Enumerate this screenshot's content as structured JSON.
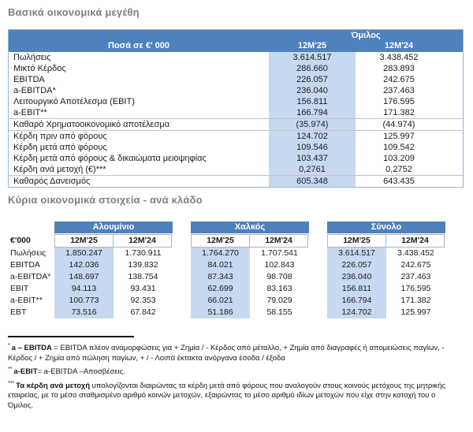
{
  "titles": {
    "section1": "Βασικά οικονομικά μεγέθη",
    "section2": "Κύρια οικονομικά στοιχεία - ανά κλάδο"
  },
  "colors": {
    "header_blue": "#4f81bd",
    "highlight_blue": "#c6d9f1",
    "title_gray": "#808080"
  },
  "table1": {
    "header": {
      "amounts_label": "Ποσά  σε €' 000",
      "group_label": "Όμιλος",
      "col_2025": "12M'25",
      "col_2024": "12M'24"
    },
    "separators_after": [
      5,
      6,
      10
    ],
    "rows": [
      {
        "label": "Πωλήσεις",
        "v25": "3.614.517",
        "v24": "3.438.452"
      },
      {
        "label": "Μικτό Κέρδος",
        "v25": "286.660",
        "v24": "283.893"
      },
      {
        "label": "EBITDA",
        "v25": "226.057",
        "v24": "242.675"
      },
      {
        "label": "a-EBITDA*",
        "v25": "236.040",
        "v24": "237.463"
      },
      {
        "label": "Λειτουργικό Αποτέλεσμα (EBIT)",
        "v25": "156.811",
        "v24": "176.595"
      },
      {
        "label": "a-EBIT**",
        "v25": "166.794",
        "v24": "171.382"
      },
      {
        "label": "Καθαρό Χρηματοοικονομικό αποτέλεσμα",
        "v25": "(35.974)",
        "v24": "(44.974)"
      },
      {
        "label": "Κέρδη πριν από φόρους",
        "v25": "124.702",
        "v24": "125.997"
      },
      {
        "label": "Κέρδη μετά από φόρους",
        "v25": "109.546",
        "v24": "109.542"
      },
      {
        "label": "Κέρδη μετά από φόρους & δικαιώματα μειοψηφίας",
        "v25": "103.437",
        "v24": "103.209"
      },
      {
        "label": "Κέρδη ανά μετοχή (€)***",
        "v25": "0,2761",
        "v24": "0,2752"
      },
      {
        "label": "Καθαρός Δανεισμός",
        "v25": "605.348",
        "v24": "643.435"
      }
    ]
  },
  "table2": {
    "unit_label": "€'000",
    "groups": [
      {
        "name": "Αλουμίνιο",
        "col_2025": "12M'25",
        "col_2024": "12M'24"
      },
      {
        "name": "Χαλκός",
        "col_2025": "12M'25",
        "col_2024": "12M'24"
      },
      {
        "name": "Σύνολο",
        "col_2025": "12M'25",
        "col_2024": "12M'24"
      }
    ],
    "rows": [
      {
        "label": "Πωλήσεις",
        "values": [
          "1.850.247",
          "1.730.911",
          "1.764.270",
          "1.707.541",
          "3.614.517",
          "3.438.452"
        ]
      },
      {
        "label": "EBITDA",
        "values": [
          "142.036",
          "139.832",
          "84.021",
          "102.843",
          "226.057",
          "242.675"
        ]
      },
      {
        "label": "a-EBITDA*",
        "values": [
          "148.697",
          "138.754",
          "87.343",
          "98.708",
          "236.040",
          "237.463"
        ]
      },
      {
        "label": "EBIT",
        "values": [
          "94.113",
          "93.431",
          "62.699",
          "83.163",
          "156.811",
          "176.595"
        ]
      },
      {
        "label": "a-EBIT**",
        "values": [
          "100.773",
          "92.353",
          "66.021",
          "79.029",
          "166.794",
          "171.382"
        ]
      },
      {
        "label": "EBT",
        "values": [
          "73.516",
          "67.842",
          "51.186",
          "58.155",
          "124.702",
          "125.997"
        ]
      }
    ]
  },
  "footnotes": [
    {
      "marker": "*",
      "lead": "a – EBITDA ",
      "text": "= EBITDA πλέον αναμορφώσεις για + Ζημία / - Κέρδος από μέταλλο, + Ζημία από διαγραφές ή απομειώσεις παγίων, - Κέρδος / + Ζημία από πώληση παγίων, + / - Λοιπά έκτακτα ανόργανα έσοδα / έξοδα"
    },
    {
      "marker": "**",
      "lead": "a-EBIT",
      "text": "= a-EBITDA –Αποσβέσεις."
    },
    {
      "marker": "***",
      "lead": "Τα κέρδη ανά μετοχή ",
      "text": "υπολογίζονται διαιρώντας τα κέρδη μετά από φόρους που αναλογούν στους κοινούς μετόχους της μητρικής εταιρείας, με το μέσο σταθμισμένο αριθμό κοινών μετοχών, εξαιρώντας το μέσο αριθμό ιδίων μετοχών που είχε στην κατοχή του ο Όμιλος."
    }
  ]
}
